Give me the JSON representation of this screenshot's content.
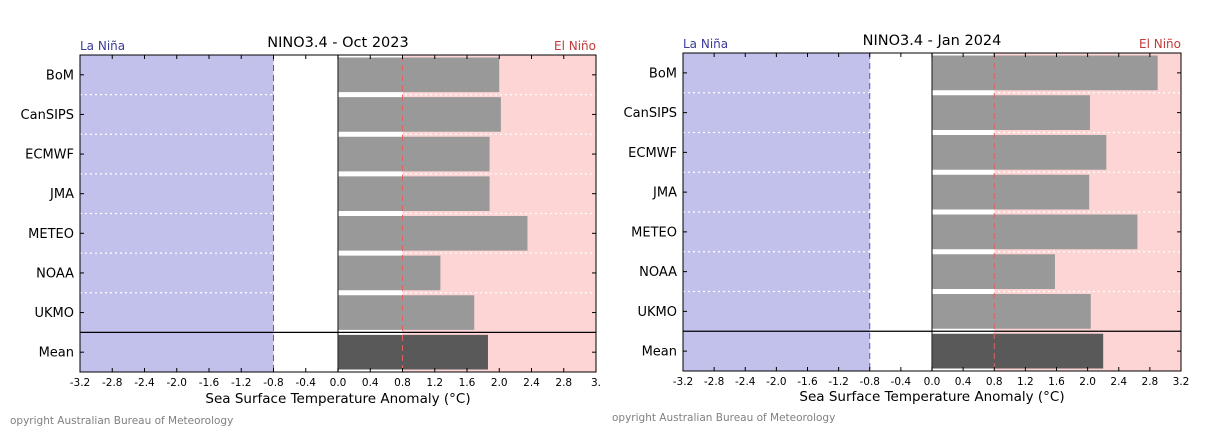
{
  "colors": {
    "la_nina_fill": "#c1c1ec",
    "el_nino_fill": "#fdd5d5",
    "bar": "#999999",
    "mean_bar": "#595959",
    "la_nina_text": "#3b3b9a",
    "el_nino_text": "#c23a3a",
    "la_nina_line": "#5757c7",
    "el_nino_line": "#e06363"
  },
  "chart_data": [
    {
      "type": "bar",
      "orientation": "horizontal",
      "title": "NINO3.4 - Oct 2023",
      "xlabel": "Sea Surface Temperature Anomaly (°C)",
      "ylabel": "",
      "left_label": "La Niña",
      "right_label": "El Niño",
      "categories": [
        "BoM",
        "CanSIPS",
        "ECMWF",
        "JMA",
        "METEO",
        "NOAA",
        "UKMO",
        "Mean"
      ],
      "values": [
        2.0,
        2.02,
        1.88,
        1.88,
        2.35,
        1.27,
        1.69,
        1.86
      ],
      "xlim": [
        -3.2,
        3.2
      ],
      "xticks": [
        "-3.2",
        "-2.8",
        "-2.4",
        "-2.0",
        "-1.6",
        "-1.2",
        "-0.8",
        "-0.4",
        "0.0",
        "0.4",
        "0.8",
        "1.2",
        "1.6",
        "2.0",
        "2.4",
        "2.8",
        "3."
      ],
      "thresholds": [
        -0.8,
        0.8
      ],
      "copyright": "opyright Australian Bureau of Meteorology"
    },
    {
      "type": "bar",
      "orientation": "horizontal",
      "title": "NINO3.4 - Jan 2024",
      "xlabel": "Sea Surface Temperature Anomaly (°C)",
      "ylabel": "",
      "left_label": "La Niña",
      "right_label": "El Niño",
      "categories": [
        "BoM",
        "CanSIPS",
        "ECMWF",
        "JMA",
        "METEO",
        "NOAA",
        "UKMO",
        "Mean"
      ],
      "values": [
        2.9,
        2.03,
        2.24,
        2.02,
        2.64,
        1.58,
        2.04,
        2.2
      ],
      "xlim": [
        -3.2,
        3.2
      ],
      "xticks": [
        "-3.2",
        "-2.8",
        "-2.4",
        "-2.0",
        "-1.6",
        "-1.2",
        "-0.8",
        "-0.4",
        "0.0",
        "0.4",
        "0.8",
        "1.2",
        "1.6",
        "2.0",
        "2.4",
        "2.8",
        "3.2"
      ],
      "thresholds": [
        -0.8,
        0.8
      ],
      "copyright": "opyright Australian Bureau of Meteorology"
    }
  ]
}
